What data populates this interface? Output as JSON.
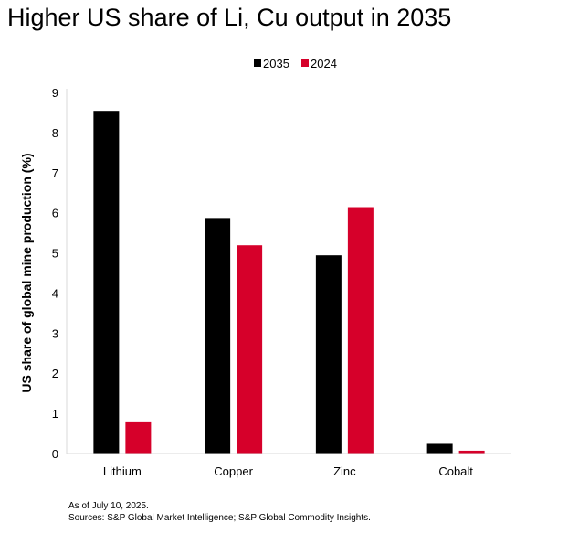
{
  "chart_data": {
    "type": "bar",
    "title": "Higher US share of Li, Cu output in 2035",
    "ylabel": "US share of global mine production (%)",
    "xlabel": "",
    "categories": [
      "Lithium",
      "Copper",
      "Zinc",
      "Cobalt"
    ],
    "series": [
      {
        "name": "2035",
        "color": "#000000",
        "values": [
          8.54,
          5.87,
          4.94,
          0.24
        ]
      },
      {
        "name": "2024",
        "color": "#D6002A",
        "values": [
          0.8,
          5.19,
          6.14,
          0.07
        ]
      }
    ],
    "ylim": [
      0,
      9
    ],
    "yticks": [
      "0",
      "1",
      "2",
      "3",
      "4",
      "5",
      "6",
      "7",
      "8",
      "9"
    ],
    "grid": false,
    "legend": "top-center"
  },
  "notes": {
    "asof": "As of July 10, 2025.",
    "sources": "Sources: S&P Global Market Intelligence; S&P Global Commodity Insights."
  }
}
